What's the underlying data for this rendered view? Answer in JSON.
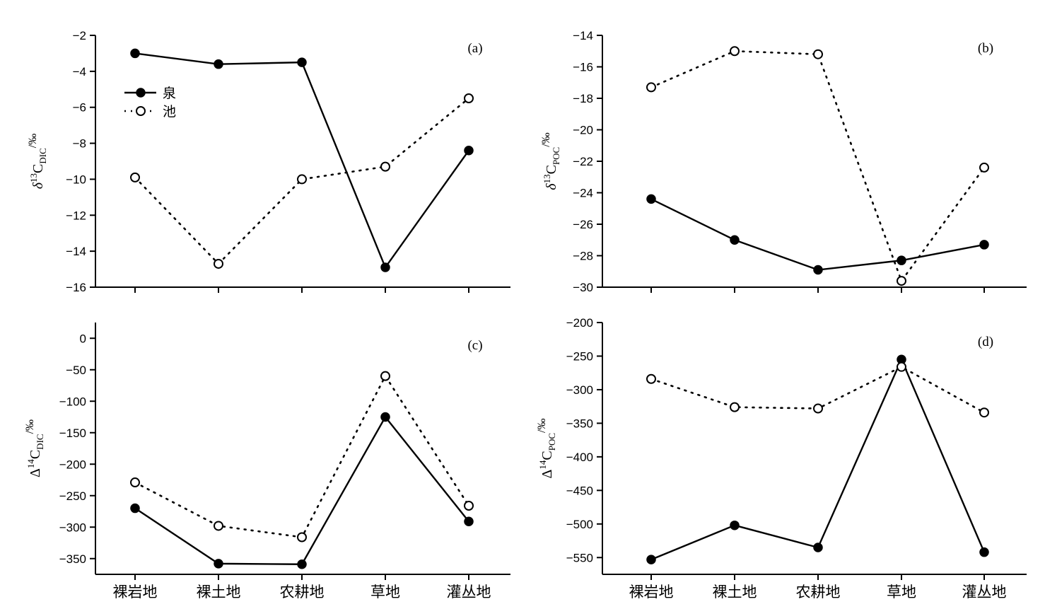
{
  "legend": {
    "spring": "泉",
    "pool": "池"
  },
  "colors": {
    "line": "#000000",
    "background": "#ffffff"
  },
  "chart_data": [
    {
      "id": "a",
      "type": "line",
      "panel_label": "(a)",
      "ylabel": {
        "prefix": "δ",
        "sup": "13",
        "main": "C",
        "sub": "DIC",
        "suffix": "/‰"
      },
      "categories": [
        "裸岩地",
        "裸土地",
        "农耕地",
        "草地",
        "灌丛地"
      ],
      "ylim": [
        -16,
        -2
      ],
      "yticks": [
        -2,
        -4,
        -6,
        -8,
        -10,
        -12,
        -14,
        -16
      ],
      "legend_position": "upper-left",
      "series": [
        {
          "name": "泉",
          "style": "solid-filled",
          "values": [
            -3.0,
            -3.6,
            -3.5,
            -14.9,
            -8.4
          ]
        },
        {
          "name": "池",
          "style": "dotted-open",
          "values": [
            -9.9,
            -14.7,
            -10.0,
            -9.3,
            -5.5
          ]
        }
      ]
    },
    {
      "id": "b",
      "type": "line",
      "panel_label": "(b)",
      "ylabel": {
        "prefix": "δ",
        "sup": "13",
        "main": "C",
        "sub": "POC",
        "suffix": "/‰"
      },
      "categories": [
        "裸岩地",
        "裸土地",
        "农耕地",
        "草地",
        "灌丛地"
      ],
      "ylim": [
        -30,
        -14
      ],
      "yticks": [
        -14,
        -16,
        -18,
        -20,
        -22,
        -24,
        -26,
        -28,
        -30
      ],
      "series": [
        {
          "name": "泉",
          "style": "solid-filled",
          "values": [
            -24.4,
            -27.0,
            -28.9,
            -28.3,
            -27.3
          ]
        },
        {
          "name": "池",
          "style": "dotted-open",
          "values": [
            -17.3,
            -15.0,
            -15.2,
            -29.6,
            -22.4
          ]
        }
      ]
    },
    {
      "id": "c",
      "type": "line",
      "panel_label": "(c)",
      "ylabel": {
        "prefix": "Δ",
        "sup": "14",
        "main": "C",
        "sub": "DIC",
        "suffix": "/‰"
      },
      "categories": [
        "裸岩地",
        "裸土地",
        "农耕地",
        "草地",
        "灌丛地"
      ],
      "ylim": [
        -375,
        25
      ],
      "yticks": [
        0,
        -50,
        -100,
        -150,
        -200,
        -250,
        -300,
        -350
      ],
      "series": [
        {
          "name": "泉",
          "style": "solid-filled",
          "values": [
            -270,
            -358,
            -359,
            -125,
            -291
          ]
        },
        {
          "name": "池",
          "style": "dotted-open",
          "values": [
            -229,
            -298,
            -316,
            -60,
            -266
          ]
        }
      ]
    },
    {
      "id": "d",
      "type": "line",
      "panel_label": "(d)",
      "ylabel": {
        "prefix": "Δ",
        "sup": "14",
        "main": "C",
        "sub": "POC",
        "suffix": "/‰"
      },
      "categories": [
        "裸岩地",
        "裸土地",
        "农耕地",
        "草地",
        "灌丛地"
      ],
      "ylim": [
        -575,
        -200
      ],
      "yticks": [
        -200,
        -250,
        -300,
        -350,
        -400,
        -450,
        -500,
        -550
      ],
      "series": [
        {
          "name": "泉",
          "style": "solid-filled",
          "values": [
            -553,
            -502,
            -535,
            -255,
            -542
          ]
        },
        {
          "name": "池",
          "style": "dotted-open",
          "values": [
            -284,
            -326,
            -328,
            -266,
            -334
          ]
        }
      ]
    }
  ]
}
